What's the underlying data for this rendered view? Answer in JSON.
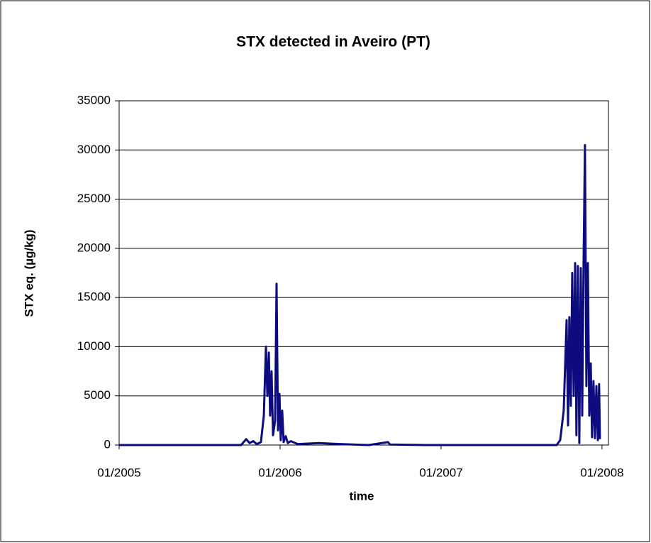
{
  "chart_data": {
    "type": "line",
    "title": "STX detected in Aveiro  (PT)",
    "xlabel": "time",
    "ylabel": "STX eq.  (µg/kg)",
    "xlim": [
      2005,
      2008.04
    ],
    "xticks": [
      {
        "value": 2005,
        "label": "01/2005"
      },
      {
        "value": 2006,
        "label": "01/2006"
      },
      {
        "value": 2007,
        "label": "01/2007"
      },
      {
        "value": 2008,
        "label": "01/2008"
      }
    ],
    "ylim": [
      0,
      35000
    ],
    "yticks": [
      0,
      5000,
      10000,
      15000,
      20000,
      25000,
      30000,
      35000
    ],
    "grid": true,
    "series": [
      {
        "name": "STX",
        "color": "#0c0c80",
        "x": [
          2005.0,
          2005.758,
          2005.789,
          2005.811,
          2005.833,
          2005.855,
          2005.881,
          2005.899,
          2005.912,
          2005.921,
          2005.93,
          2005.938,
          2005.947,
          2005.956,
          2005.969,
          2005.978,
          2005.987,
          2005.996,
          2006.004,
          2006.013,
          2006.022,
          2006.035,
          2006.048,
          2006.066,
          2006.11,
          2006.242,
          2006.374,
          2006.551,
          2006.67,
          2006.683,
          2006.903,
          2007.718,
          2007.74,
          2007.762,
          2007.78,
          2007.789,
          2007.797,
          2007.806,
          2007.815,
          2007.824,
          2007.833,
          2007.841,
          2007.85,
          2007.859,
          2007.868,
          2007.877,
          2007.885,
          2007.894,
          2007.903,
          2007.912,
          2007.921,
          2007.93,
          2007.938,
          2007.947,
          2007.956,
          2007.965,
          2007.974,
          2007.982,
          2007.987
        ],
        "values": [
          0,
          0,
          600,
          200,
          400,
          100,
          300,
          3000,
          10000,
          5000,
          9400,
          3000,
          7500,
          1000,
          2500,
          16400,
          1500,
          5200,
          500,
          3500,
          300,
          900,
          200,
          400,
          100,
          200,
          100,
          0,
          300,
          50,
          0,
          0,
          500,
          3500,
          12700,
          2000,
          13000,
          4000,
          17500,
          5000,
          18500,
          1000,
          18200,
          200,
          18000,
          3000,
          17800,
          30500,
          6000,
          18500,
          3000,
          8300,
          800,
          6500,
          700,
          6000,
          500,
          6200,
          600
        ]
      }
    ]
  }
}
